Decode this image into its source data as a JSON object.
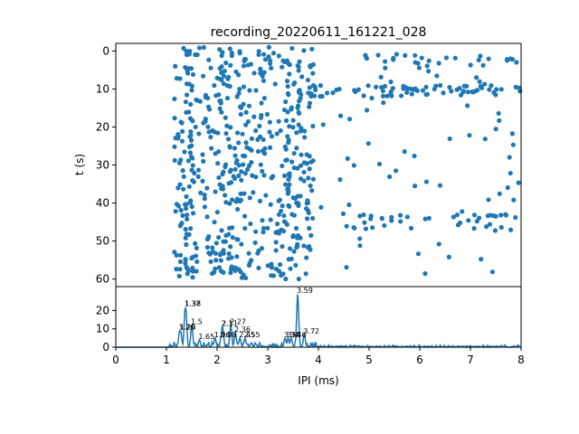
{
  "chart_data": [
    {
      "type": "scatter",
      "title": "recording_20220611_161221_028",
      "xlabel": "",
      "ylabel": "t (s)",
      "xlim": [
        0,
        8
      ],
      "ylim": [
        62,
        -2
      ],
      "y_ticks": [
        0,
        10,
        20,
        30,
        40,
        50,
        60
      ],
      "y_inverted": true,
      "color": "#1f77b4",
      "point_count": 700,
      "description_note": ""
    },
    {
      "type": "line",
      "xlabel": "IPI (ms)",
      "ylabel": "",
      "xlim": [
        0,
        8
      ],
      "ylim": [
        0,
        33
      ],
      "x_ticks": [
        0,
        1,
        2,
        3,
        4,
        5,
        6,
        7,
        8
      ],
      "y_ticks": [
        0,
        10,
        20
      ],
      "color": "#1f77b4",
      "peaks": [
        {
          "x": 1.38,
          "y": 22,
          "label": "1.38"
        },
        {
          "x": 1.37,
          "y": 22,
          "label": "1.37"
        },
        {
          "x": 1.26,
          "y": 9,
          "label": "1.26"
        },
        {
          "x": 1.28,
          "y": 9,
          "label": "1.28"
        },
        {
          "x": 1.5,
          "y": 12,
          "label": "1.5"
        },
        {
          "x": 1.65,
          "y": 4,
          "label": "1.65"
        },
        {
          "x": 1.96,
          "y": 5,
          "label": "1.96"
        },
        {
          "x": 2.08,
          "y": 5,
          "label": "2.08"
        },
        {
          "x": 2.1,
          "y": 11,
          "label": "2.1"
        },
        {
          "x": 2.11,
          "y": 11,
          "label": "2.11"
        },
        {
          "x": 2.27,
          "y": 12,
          "label": "2.27"
        },
        {
          "x": 2.36,
          "y": 8,
          "label": "2.36"
        },
        {
          "x": 2.45,
          "y": 5,
          "label": "2.45"
        },
        {
          "x": 2.55,
          "y": 5,
          "label": "2.55"
        },
        {
          "x": 3.59,
          "y": 29,
          "label": "3.59"
        },
        {
          "x": 3.34,
          "y": 5,
          "label": "3.34"
        },
        {
          "x": 3.4,
          "y": 5,
          "label": "3.4"
        },
        {
          "x": 3.46,
          "y": 5,
          "label": "3.46"
        },
        {
          "x": 3.72,
          "y": 7,
          "label": "3.72"
        }
      ]
    }
  ]
}
